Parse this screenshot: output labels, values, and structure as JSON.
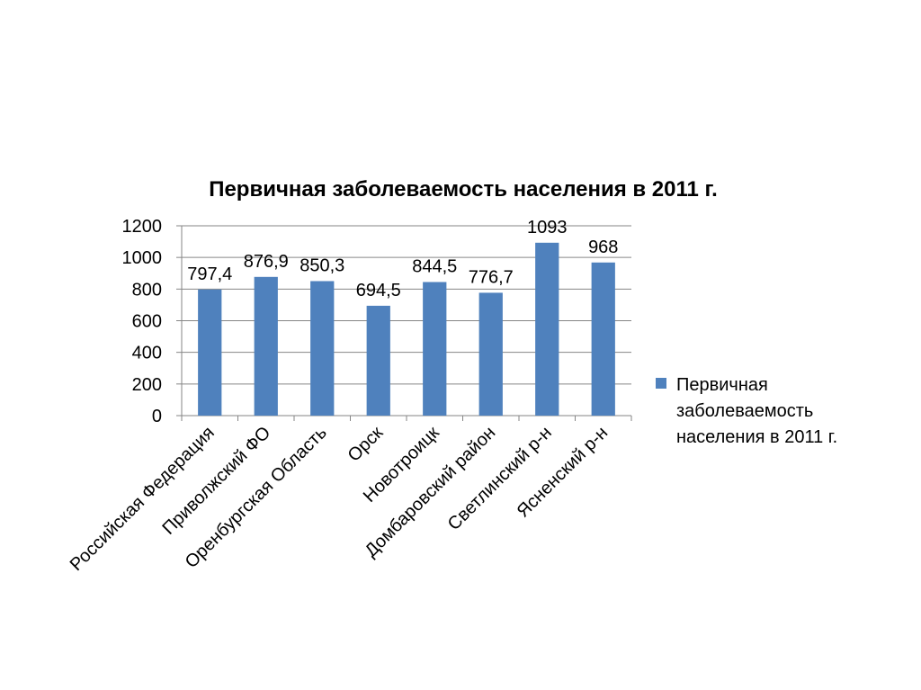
{
  "chart_data": {
    "type": "bar",
    "title": "Первичная заболеваемость населения в 2011 г.",
    "xlabel": "",
    "ylabel": "",
    "categories": [
      "Российская Федерация",
      "Приволжский ФО",
      "Оренбургская Область",
      "Орск",
      "Новотроицк",
      "Домбаровский район",
      "Светлинский р-н",
      "Ясненский р-н"
    ],
    "series": [
      {
        "name": "Первичная заболеваемость населения в 2011 г.",
        "values": [
          797.4,
          876.9,
          850.3,
          694.5,
          844.5,
          776.7,
          1093,
          968
        ],
        "labels": [
          "797,4",
          "876,9",
          "850,3",
          "694,5",
          "844,5",
          "776,7",
          "1093",
          "968"
        ],
        "color": "#4F81BD"
      }
    ],
    "ylim": [
      0,
      1200
    ],
    "yticks": [
      0,
      200,
      400,
      600,
      800,
      1000,
      1200
    ],
    "grid": true,
    "legend": "right",
    "legend_lines": [
      "Первичная",
      "заболеваемость",
      "населения в 2011 г."
    ]
  },
  "colors": {
    "bar": "#4F81BD",
    "grid": "#868686",
    "axis": "#868686",
    "text": "#000000",
    "background": "#FFFFFF"
  }
}
